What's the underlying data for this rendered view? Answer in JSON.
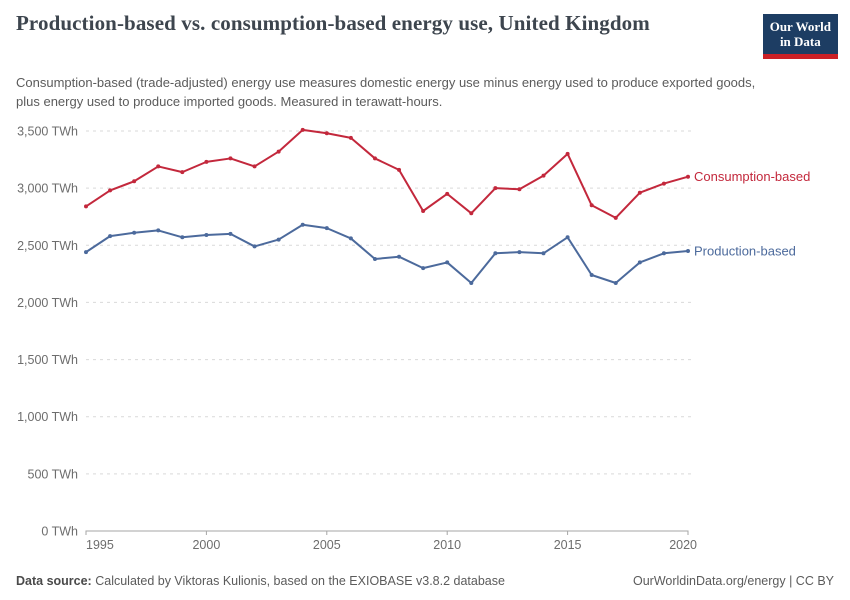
{
  "header": {
    "title": "Production-based vs. consumption-based energy use, United Kingdom",
    "subtitle": "Consumption-based (trade-adjusted) energy use measures domestic energy use minus energy used to produce exported goods, plus energy used to produce imported goods. Measured in terawatt-hours.",
    "logo_line1": "Our World",
    "logo_line2": "in Data"
  },
  "colors": {
    "consumption_red": "#c3283c",
    "production_blue": "#4c6a9c",
    "logo_navy": "#1d3d63",
    "logo_red": "#cb2026",
    "gridline": "#d9d9d9",
    "axis": "#a5a5a5",
    "tick_text": "#6d6d6d"
  },
  "chart_data": {
    "type": "line",
    "title": "Production-based vs. consumption-based energy use, United Kingdom",
    "unit": "TWh",
    "x": [
      1995,
      1996,
      1997,
      1998,
      1999,
      2000,
      2001,
      2002,
      2003,
      2004,
      2005,
      2006,
      2007,
      2008,
      2009,
      2010,
      2011,
      2012,
      2013,
      2014,
      2015,
      2016,
      2017,
      2018,
      2019,
      2020
    ],
    "series": [
      {
        "name": "Consumption-based",
        "color": "#c3283c",
        "values": [
          2840,
          2980,
          3060,
          3190,
          3140,
          3230,
          3260,
          3190,
          3320,
          3510,
          3480,
          3440,
          3260,
          3160,
          2800,
          2950,
          2780,
          3000,
          2990,
          3110,
          3300,
          2850,
          2740,
          2960,
          3040,
          3100
        ]
      },
      {
        "name": "Production-based",
        "color": "#4c6a9c",
        "values": [
          2440,
          2580,
          2610,
          2630,
          2570,
          2590,
          2600,
          2490,
          2550,
          2680,
          2650,
          2560,
          2380,
          2400,
          2300,
          2350,
          2170,
          2430,
          2440,
          2430,
          2570,
          2240,
          2170,
          2350,
          2430,
          2450
        ]
      }
    ],
    "xlim": [
      1995,
      2020
    ],
    "ylim": [
      0,
      3500
    ],
    "xticks": [
      1995,
      2000,
      2005,
      2010,
      2015,
      2020
    ],
    "yticks": [
      0,
      500,
      1000,
      1500,
      2000,
      2500,
      3000,
      3500
    ],
    "ytick_labels": [
      "0 TWh",
      "500 TWh",
      "1,000 TWh",
      "1,500 TWh",
      "2,000 TWh",
      "2,500 TWh",
      "3,000 TWh",
      "3,500 TWh"
    ],
    "grid": "horizontal-dashed",
    "legend_position": "end-of-line"
  },
  "footer": {
    "source_label": "Data source:",
    "source_text": "Calculated by Viktoras Kulionis, based on the EXIOBASE v3.8.2 database",
    "right_text": "OurWorldinData.org/energy | CC BY"
  }
}
